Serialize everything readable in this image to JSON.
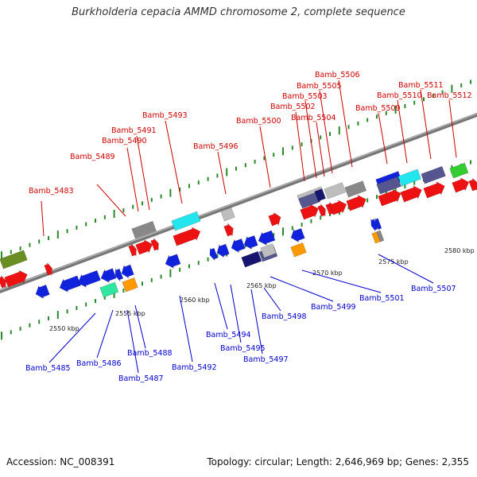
{
  "title": "Burkholderia cepacia AMMD chromosome 2, complete sequence",
  "footer": {
    "accession": "Accession: NC_008391",
    "summary": "Topology: circular; Length: 2,646,969 bp; Genes: 2,355"
  },
  "colors": {
    "red": "#ee1111",
    "blue": "#1122dd",
    "gray": "#888888",
    "green": "#6b8e23",
    "cyan": "#22e5ee",
    "navy": "#16166e",
    "orange": "#ff9900",
    "teal": "#2ee6a0",
    "lightgreen": "#33cc33",
    "slate": "#55558f",
    "lightgray": "#bdbdbd",
    "top_label": "#cc0000",
    "bottom_label": "#0000cc"
  },
  "ruler_labels": [
    "2550 kbp",
    "2555 kbp",
    "2560 kbp",
    "2565 kbp",
    "2570 kbp",
    "2575 kbp",
    "2580 kbp"
  ],
  "top_genes": [
    "Bamb_5483",
    "Bamb_5489",
    "Bamb_5490",
    "Bamb_5491",
    "Bamb_5493",
    "Bamb_5496",
    "Bamb_5500",
    "Bamb_5502",
    "Bamb_5503",
    "Bamb_5504",
    "Bamb_5505",
    "Bamb_5506",
    "Bamb_5509",
    "Bamb_5510",
    "Bamb_5511",
    "Bamb_5512"
  ],
  "bottom_genes": [
    "Bamb_5485",
    "Bamb_5486",
    "Bamb_5487",
    "Bamb_5488",
    "Bamb_5492",
    "Bamb_5494",
    "Bamb_5495",
    "Bamb_5497",
    "Bamb_5498",
    "Bamb_5499",
    "Bamb_5501",
    "Bamb_5507"
  ]
}
